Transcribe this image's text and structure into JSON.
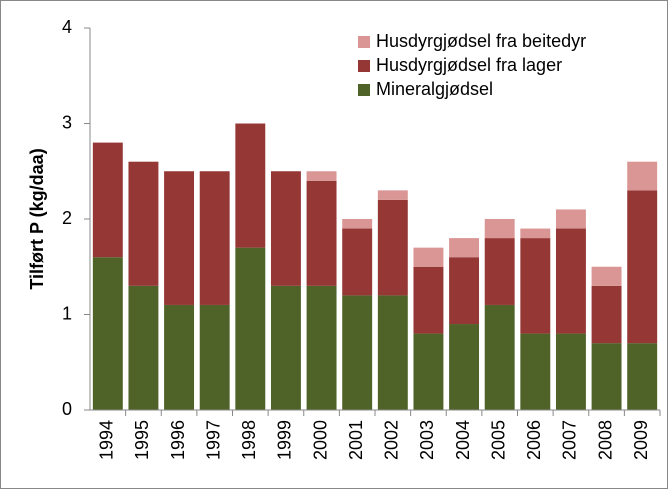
{
  "chart_data": {
    "type": "stacked-bar",
    "y_label": "Tilført P (kg/daa)",
    "categories": [
      "1994",
      "1995",
      "1996",
      "1997",
      "1998",
      "1999",
      "2000",
      "2001",
      "2002",
      "2003",
      "2004",
      "2005",
      "2006",
      "2007",
      "2008",
      "2009"
    ],
    "series": [
      {
        "name": "Mineralgjødsel",
        "color": "#4f6228",
        "values": [
          1.6,
          1.3,
          1.1,
          1.1,
          1.7,
          1.3,
          1.3,
          1.2,
          1.2,
          0.8,
          0.9,
          1.1,
          0.8,
          0.8,
          0.7,
          0.7
        ]
      },
      {
        "name": "Husdyrgjødsel fra lager",
        "color": "#953735",
        "values": [
          1.2,
          1.3,
          1.4,
          1.4,
          1.3,
          1.2,
          1.1,
          0.7,
          1.0,
          0.7,
          0.7,
          0.7,
          1.0,
          1.1,
          0.6,
          1.6
        ]
      },
      {
        "name": "Husdyrgjødsel fra beitedyr",
        "color": "#d99694",
        "values": [
          0,
          0,
          0,
          0,
          0,
          0,
          0.1,
          0.1,
          0.1,
          0.2,
          0.2,
          0.2,
          0.1,
          0.2,
          0.2,
          0.3
        ]
      }
    ],
    "ylim": [
      0,
      4
    ],
    "yticks": [
      0,
      1,
      2,
      3,
      4
    ],
    "grid": false
  }
}
